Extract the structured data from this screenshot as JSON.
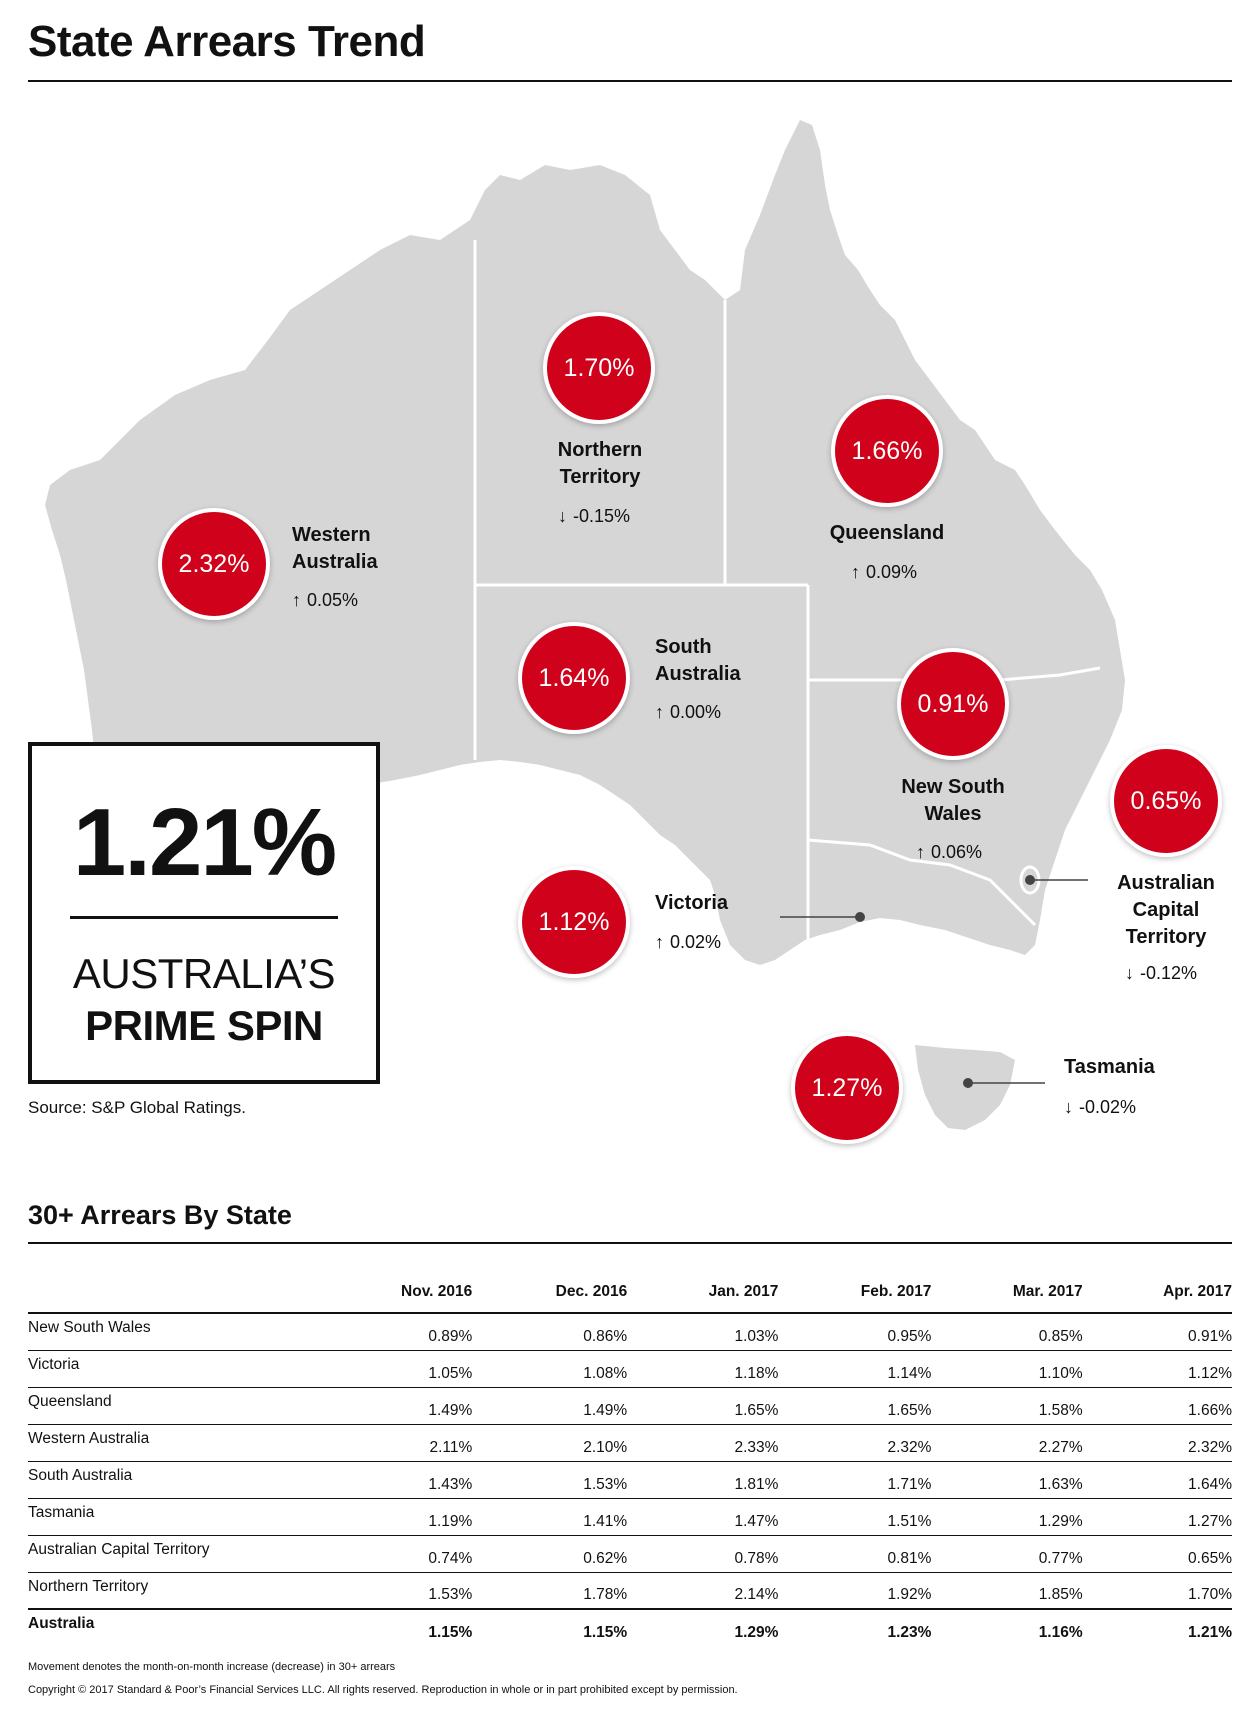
{
  "title": "State Arrears Trend",
  "colors": {
    "accent": "#d0021b",
    "map_fill": "#d6d6d6",
    "text": "#111111"
  },
  "map": {
    "states": [
      {
        "id": "western-australia",
        "name": "Western Australia",
        "value": "2.32%",
        "change": "0.05%",
        "direction": "up"
      },
      {
        "id": "northern-territory",
        "name": "Northern Territory",
        "value": "1.70%",
        "change": "-0.15%",
        "direction": "down"
      },
      {
        "id": "queensland",
        "name": "Queensland",
        "value": "1.66%",
        "change": "0.09%",
        "direction": "up"
      },
      {
        "id": "south-australia",
        "name": "South Australia",
        "value": "1.64%",
        "change": "0.00%",
        "direction": "up"
      },
      {
        "id": "new-south-wales",
        "name": "New South Wales",
        "value": "0.91%",
        "change": "0.06%",
        "direction": "up"
      },
      {
        "id": "australian-capital-territory",
        "name": "Australian Capital Territory",
        "value": "0.65%",
        "change": "-0.12%",
        "direction": "down"
      },
      {
        "id": "victoria",
        "name": "Victoria",
        "value": "1.12%",
        "change": "0.02%",
        "direction": "up"
      },
      {
        "id": "tasmania",
        "name": "Tasmania",
        "value": "1.27%",
        "change": "-0.02%",
        "direction": "down"
      }
    ],
    "arrows": {
      "up": "↑",
      "down": "↓"
    }
  },
  "summary": {
    "value": "1.21%",
    "label_line1": "AUSTRALIA’S",
    "label_line2": "PRIME SPIN"
  },
  "source": "Source: S&P Global Ratings.",
  "table": {
    "title": "30+ Arrears By State",
    "columns": [
      "",
      "Nov. 2016",
      "Dec. 2016",
      "Jan. 2017",
      "Feb. 2017",
      "Mar. 2017",
      "Apr. 2017"
    ],
    "rows": [
      {
        "name": "New South Wales",
        "values": [
          "0.89%",
          "0.86%",
          "1.03%",
          "0.95%",
          "0.85%",
          "0.91%"
        ]
      },
      {
        "name": "Victoria",
        "values": [
          "1.05%",
          "1.08%",
          "1.18%",
          "1.14%",
          "1.10%",
          "1.12%"
        ]
      },
      {
        "name": "Queensland",
        "values": [
          "1.49%",
          "1.49%",
          "1.65%",
          "1.65%",
          "1.58%",
          "1.66%"
        ]
      },
      {
        "name": "Western Australia",
        "values": [
          "2.11%",
          "2.10%",
          "2.33%",
          "2.32%",
          "2.27%",
          "2.32%"
        ]
      },
      {
        "name": "South Australia",
        "values": [
          "1.43%",
          "1.53%",
          "1.81%",
          "1.71%",
          "1.63%",
          "1.64%"
        ]
      },
      {
        "name": "Tasmania",
        "values": [
          "1.19%",
          "1.41%",
          "1.47%",
          "1.51%",
          "1.29%",
          "1.27%"
        ]
      },
      {
        "name": "Australian Capital Territory",
        "values": [
          "0.74%",
          "0.62%",
          "0.78%",
          "0.81%",
          "0.77%",
          "0.65%"
        ]
      },
      {
        "name": "Northern Territory",
        "values": [
          "1.53%",
          "1.78%",
          "2.14%",
          "1.92%",
          "1.85%",
          "1.70%"
        ]
      }
    ],
    "total": {
      "name": "Australia",
      "values": [
        "1.15%",
        "1.15%",
        "1.29%",
        "1.23%",
        "1.16%",
        "1.21%"
      ]
    }
  },
  "footnote": "Movement denotes the month-on-month increase (decrease) in 30+ arrears",
  "copyright": "Copyright © 2017 Standard & Poor’s Financial Services LLC. All rights reserved. Reproduction in whole or in part prohibited except by permission."
}
